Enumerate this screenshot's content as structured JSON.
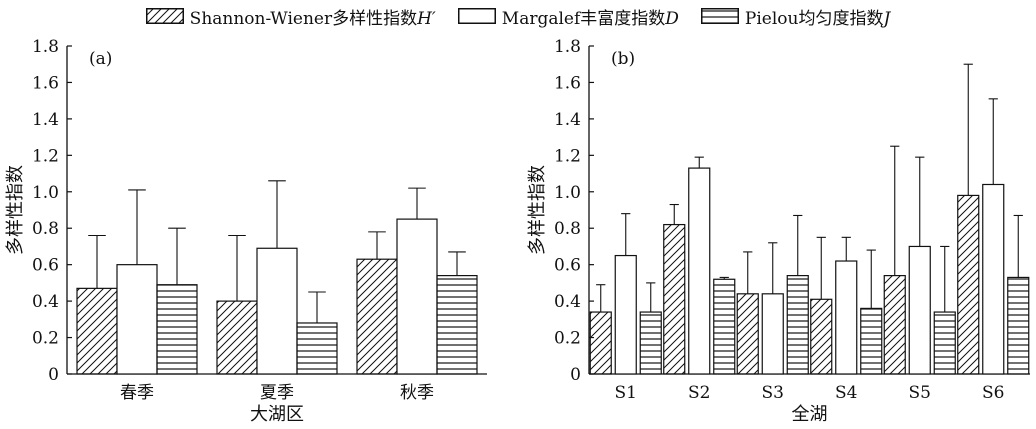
{
  "legend": [
    {
      "pattern": "diag",
      "text": "Shannon-Wiener多样性指数",
      "symbol": "H′"
    },
    {
      "pattern": "blank",
      "text": "Margalef丰富度指数",
      "symbol": "D"
    },
    {
      "pattern": "horiz",
      "text": "Pielou均匀度指数",
      "symbol": "J"
    }
  ],
  "chart_data": [
    {
      "type": "bar",
      "panel_label": "(a)",
      "ylabel": "多样性指数",
      "xlabel": "大湖区",
      "ylim": [
        0,
        1.8
      ],
      "yticks": [
        "0",
        "0.2",
        "0.4",
        "0.6",
        "0.8",
        "1.0",
        "1.2",
        "1.4",
        "1.6",
        "1.8"
      ],
      "categories": [
        "春季",
        "夏季",
        "秋季"
      ],
      "series": [
        {
          "name": "Shannon-Wiener多样性指数H′",
          "pattern": "diag",
          "values": [
            0.47,
            0.4,
            0.63
          ],
          "errors": [
            0.29,
            0.36,
            0.15
          ]
        },
        {
          "name": "Margalef丰富度指数D",
          "pattern": "blank",
          "values": [
            0.6,
            0.69,
            0.85
          ],
          "errors": [
            0.41,
            0.37,
            0.17
          ]
        },
        {
          "name": "Pielou均匀度指数J",
          "pattern": "horiz",
          "values": [
            0.49,
            0.28,
            0.54
          ],
          "errors": [
            0.31,
            0.17,
            0.13
          ]
        }
      ]
    },
    {
      "type": "bar",
      "panel_label": "(b)",
      "ylabel": "多样性指数",
      "xlabel": "全湖",
      "ylim": [
        0,
        1.8
      ],
      "yticks": [
        "0",
        "0.2",
        "0.4",
        "0.6",
        "0.8",
        "1.0",
        "1.2",
        "1.4",
        "1.6",
        "1.8"
      ],
      "categories": [
        "S1",
        "S2",
        "S3",
        "S4",
        "S5",
        "S6"
      ],
      "series": [
        {
          "name": "Shannon-Wiener多样性指数H′",
          "pattern": "diag",
          "values": [
            0.34,
            0.82,
            0.44,
            0.41,
            0.54,
            0.98
          ],
          "errors": [
            0.15,
            0.11,
            0.23,
            0.34,
            0.71,
            0.72
          ]
        },
        {
          "name": "Margalef丰富度指数D",
          "pattern": "blank",
          "values": [
            0.65,
            1.13,
            0.44,
            0.62,
            0.7,
            1.04
          ],
          "errors": [
            0.23,
            0.06,
            0.28,
            0.13,
            0.49,
            0.47
          ]
        },
        {
          "name": "Pielou均匀度指数J",
          "pattern": "horiz",
          "values": [
            0.34,
            0.52,
            0.54,
            0.36,
            0.34,
            0.53
          ],
          "errors": [
            0.16,
            0.01,
            0.33,
            0.32,
            0.36,
            0.34
          ]
        }
      ]
    }
  ]
}
